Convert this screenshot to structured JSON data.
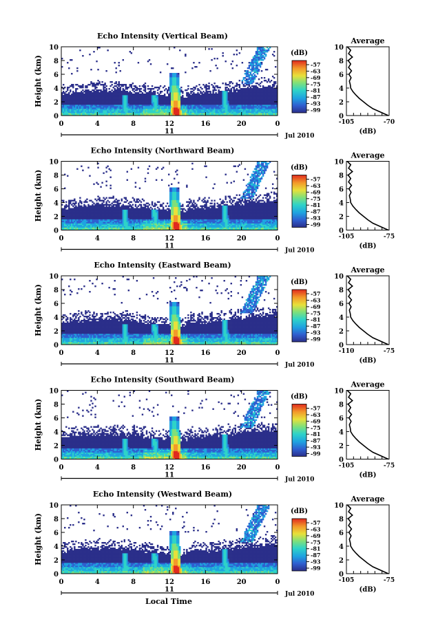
{
  "chart_data": {
    "type": "heatmap",
    "panels": [
      {
        "title": "Echo Intensity (Vertical Beam)",
        "avg_xmin": -105,
        "avg_xmax": -70,
        "avg_xlabels": [
          "-105",
          "-70"
        ]
      },
      {
        "title": "Echo Intensity (Northward Beam)",
        "avg_xmin": -105,
        "avg_xmax": -75,
        "avg_xlabels": [
          "-105",
          "-75"
        ]
      },
      {
        "title": "Echo Intensity (Eastward Beam)",
        "avg_xmin": -110,
        "avg_xmax": -75,
        "avg_xlabels": [
          "-110",
          "-75"
        ]
      },
      {
        "title": "Echo Intensity (Southward Beam)",
        "avg_xmin": -105,
        "avg_xmax": -75,
        "avg_xlabels": [
          "-105",
          "-75"
        ]
      },
      {
        "title": "Echo Intensity (Westward Beam)",
        "avg_xmin": -105,
        "avg_xmax": -75,
        "avg_xlabels": [
          "-105",
          "-75"
        ]
      }
    ],
    "ylabel": "Height (km)",
    "ylim": [
      0,
      10
    ],
    "yticks": [
      "0",
      "2",
      "4",
      "6",
      "8",
      "10"
    ],
    "xlim": [
      0,
      24
    ],
    "xticks": [
      "0",
      "4",
      "8",
      "12",
      "16",
      "20",
      "0"
    ],
    "date_day": "11",
    "date_label": "Jul 2010",
    "xlabel": "Local Time",
    "colorbar_unit": "(dB)",
    "colorbar_ticks": [
      "-57",
      "-63",
      "-69",
      "-75",
      "-81",
      "-87",
      "-93",
      "-99"
    ],
    "colorscale": [
      "#2b2f8a",
      "#2f5fd0",
      "#1fa3e0",
      "#2fd3c8",
      "#7fe07a",
      "#e8e03a",
      "#f39a2a",
      "#e02a1e"
    ],
    "average_title": "Average",
    "average_xlabel": "(dB)",
    "average_profile": {
      "heights": [
        0,
        0.5,
        1,
        1.5,
        2,
        2.5,
        3,
        3.5,
        4,
        4.5,
        5,
        5.5,
        6,
        6.5,
        7,
        7.5,
        8,
        8.5,
        9,
        9.5,
        10
      ],
      "frac": [
        0.98,
        0.8,
        0.62,
        0.5,
        0.4,
        0.3,
        0.22,
        0.15,
        0.1,
        0.09,
        0.07,
        0.11,
        0.06,
        0.12,
        0.05,
        0.1,
        0.04,
        0.14,
        0.05,
        0.1,
        0.02
      ]
    },
    "features": {
      "boundary_layer_top_km": 3.2,
      "convective_columns_hour": [
        7.2,
        10.5,
        12.8,
        18.3
      ],
      "strongest_column_hour": 12.8,
      "upper_plume_hours": [
        20.5,
        22.5
      ],
      "upper_plume_km": [
        4.5,
        10
      ]
    }
  }
}
